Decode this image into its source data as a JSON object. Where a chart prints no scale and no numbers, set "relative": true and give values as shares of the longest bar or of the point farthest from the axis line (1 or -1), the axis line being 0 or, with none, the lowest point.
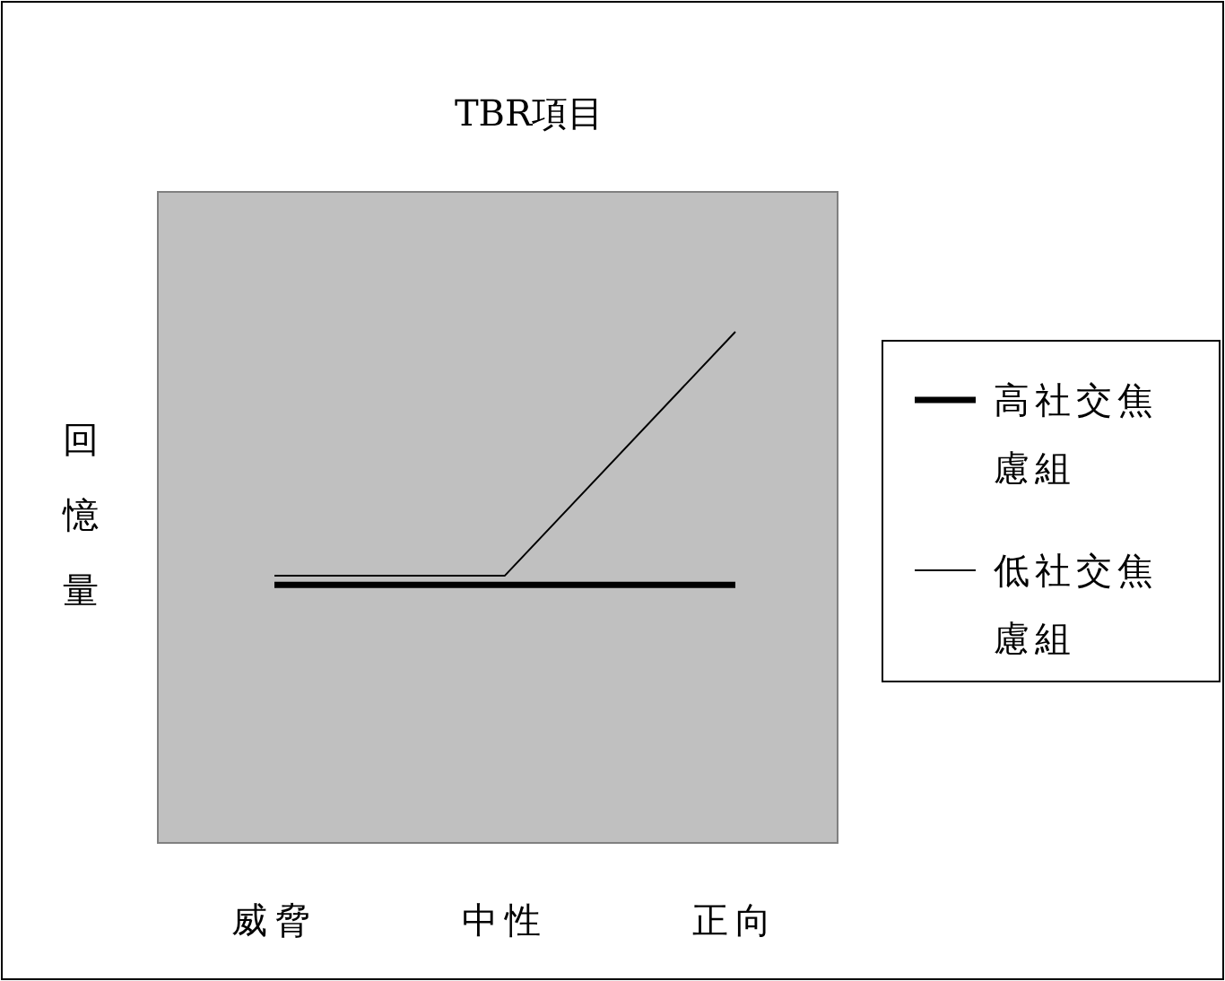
{
  "chart_data": {
    "type": "line",
    "title": "TBR項目",
    "ylabel": "回憶量",
    "categories": [
      "威脅",
      "中性",
      "正向"
    ],
    "relative": true,
    "legend": "right",
    "grid": false,
    "marker": "none",
    "line_style": "solid",
    "series": [
      {
        "name": "高社交焦慮組",
        "color": "#000000",
        "values": [
          0.505,
          0.505,
          0.505
        ]
      },
      {
        "name": "低社交焦慮組",
        "color": "#000000",
        "values": [
          0.523,
          0.523,
          1
        ]
      }
    ]
  }
}
